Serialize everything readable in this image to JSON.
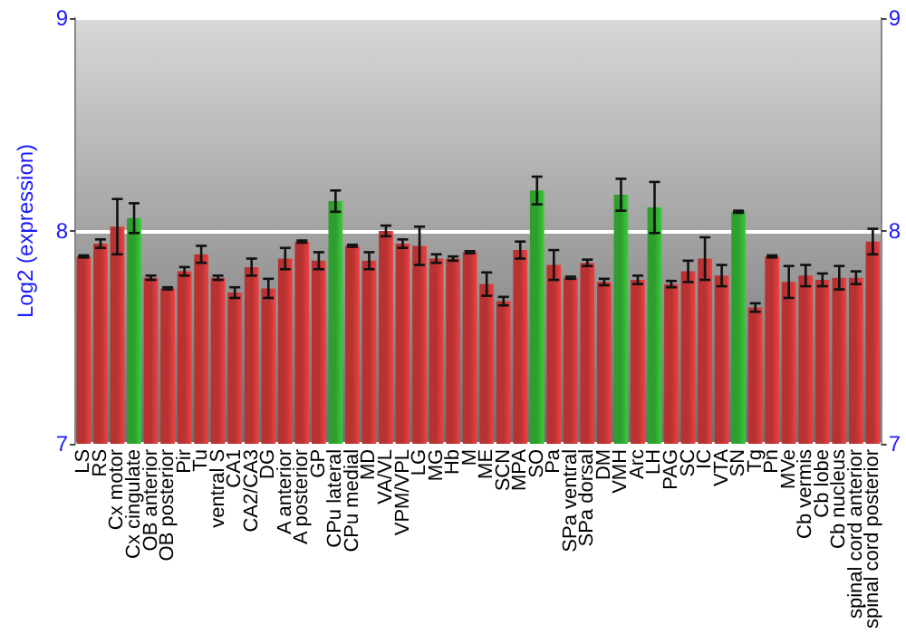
{
  "chart_data": {
    "type": "bar",
    "ylabel": "Log2 (expression)",
    "categories": [
      "LS",
      "RS",
      "Cx motor",
      "Cx cingulate",
      "OB anterior",
      "OB posterior",
      "Pir",
      "Tu",
      "ventral S",
      "CA1",
      "CA2/CA3",
      "DG",
      "A anterior",
      "A posterior",
      "GP",
      "CPu lateral",
      "CPu medial",
      "MD",
      "VA/VL",
      "VPM/VPL",
      "LG",
      "MG",
      "Hb",
      "M",
      "ME",
      "SCN",
      "MPA",
      "SO",
      "Pa",
      "SPa ventral",
      "SPa dorsal",
      "DM",
      "VMH",
      "Arc",
      "LH",
      "PAG",
      "SC",
      "IC",
      "VTA",
      "SN",
      "Tg",
      "Pn",
      "MVe",
      "Cb vermis",
      "Cb lobe",
      "Cb nucleus",
      "spinal cord anterior",
      "spinal cord posterior"
    ],
    "values": [
      7.88,
      7.94,
      8.02,
      8.06,
      7.78,
      7.73,
      7.81,
      7.89,
      7.78,
      7.71,
      7.83,
      7.73,
      7.87,
      7.95,
      7.86,
      8.14,
      7.93,
      7.86,
      8.0,
      7.94,
      7.93,
      7.87,
      7.87,
      7.9,
      7.75,
      7.67,
      7.91,
      8.19,
      7.84,
      7.78,
      7.85,
      7.76,
      8.17,
      7.77,
      8.11,
      7.75,
      7.81,
      7.87,
      7.79,
      8.09,
      7.64,
      7.88,
      7.76,
      7.79,
      7.77,
      7.78,
      7.78,
      7.95
    ],
    "errors": [
      0.005,
      0.02,
      0.13,
      0.07,
      0.01,
      0.005,
      0.02,
      0.04,
      0.01,
      0.025,
      0.04,
      0.045,
      0.05,
      0.005,
      0.04,
      0.05,
      0.005,
      0.04,
      0.025,
      0.02,
      0.09,
      0.02,
      0.01,
      0.005,
      0.055,
      0.02,
      0.04,
      0.065,
      0.07,
      0.005,
      0.015,
      0.015,
      0.075,
      0.02,
      0.12,
      0.015,
      0.05,
      0.1,
      0.05,
      0.005,
      0.02,
      0.005,
      0.075,
      0.05,
      0.03,
      0.055,
      0.03,
      0.06
    ],
    "colors": [
      "#b83232",
      "#b83232",
      "#b83232",
      "#2e9e2e",
      "#b83232",
      "#b83232",
      "#b83232",
      "#b83232",
      "#b83232",
      "#b83232",
      "#b83232",
      "#b83232",
      "#b83232",
      "#b83232",
      "#b83232",
      "#2e9e2e",
      "#b83232",
      "#b83232",
      "#b83232",
      "#b83232",
      "#b83232",
      "#b83232",
      "#b83232",
      "#b83232",
      "#b83232",
      "#b83232",
      "#b83232",
      "#2e9e2e",
      "#b83232",
      "#b83232",
      "#b83232",
      "#b83232",
      "#2e9e2e",
      "#b83232",
      "#2e9e2e",
      "#b83232",
      "#b83232",
      "#b83232",
      "#b83232",
      "#2e9e2e",
      "#b83232",
      "#b83232",
      "#b83232",
      "#b83232",
      "#b83232",
      "#b83232",
      "#b83232",
      "#b83232"
    ],
    "ylim": [
      7,
      9
    ],
    "yticks": [
      7,
      8,
      9
    ],
    "y2lim": [
      7,
      9
    ],
    "y2ticks": [
      7,
      8,
      9
    ],
    "grid": "y"
  }
}
